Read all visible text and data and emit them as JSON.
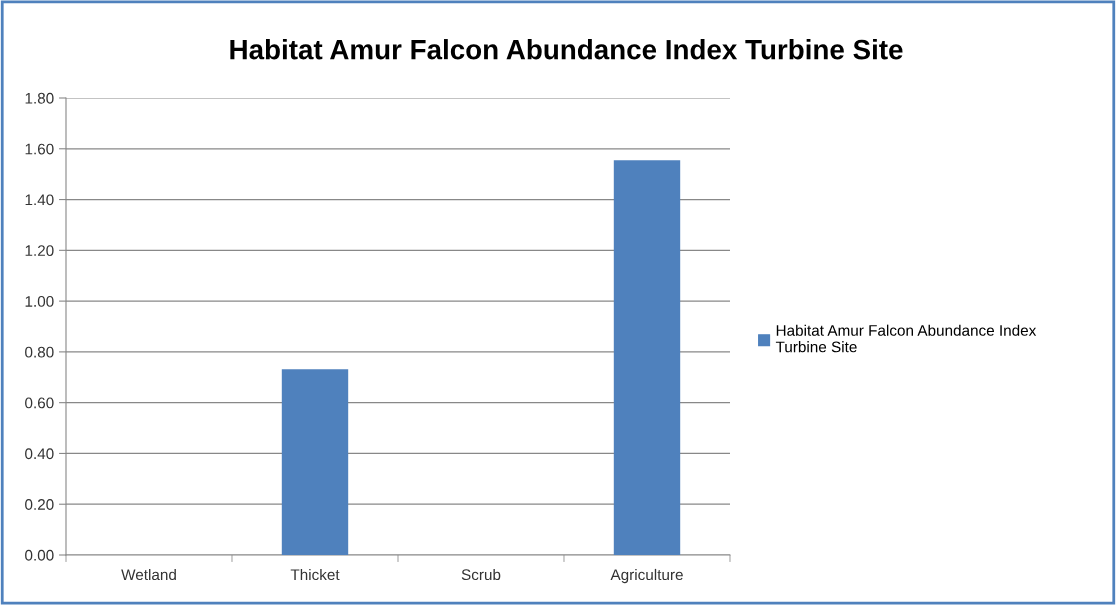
{
  "chart_data": {
    "type": "bar",
    "title": "Habitat Amur Falcon Abundance Index Turbine Site",
    "categories": [
      "Wetland",
      "Thicket",
      "Scrub",
      "Agriculture"
    ],
    "series": [
      {
        "name": "Habitat Amur Falcon Abundance Index\nTurbine Site",
        "color": "#4f81bd",
        "values": [
          0,
          0.732,
          0,
          1.555
        ]
      }
    ],
    "ylim": [
      0,
      1.8
    ],
    "yticks": [
      {
        "value": 0,
        "label": "0.00"
      },
      {
        "value": 0.2,
        "label": "0.20"
      },
      {
        "value": 0.4,
        "label": "0.40"
      },
      {
        "value": 0.6,
        "label": "0.60"
      },
      {
        "value": 0.8,
        "label": "0.80"
      },
      {
        "value": 1.0,
        "label": "1.00"
      },
      {
        "value": 1.2,
        "label": "1.20"
      },
      {
        "value": 1.4,
        "label": "1.40"
      },
      {
        "value": 1.6,
        "label": "1.60"
      },
      {
        "value": 1.8,
        "label": "1.80"
      }
    ],
    "grid": "y",
    "legend": "right"
  }
}
